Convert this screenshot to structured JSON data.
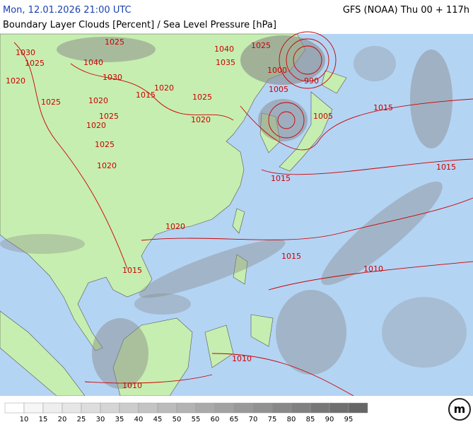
{
  "header": {
    "datetime": "Mon, 12.01.2026 21:00 UTC",
    "model": "GFS (NOAA) Thu 00 + 117h",
    "subtitle": "Boundary Layer Clouds [Percent] / Sea Level Pressure [hPa]"
  },
  "isobar_labels": [
    "1025",
    "1030",
    "1025",
    "1040",
    "1020",
    "1030",
    "1015",
    "1020",
    "1020",
    "1025",
    "1025",
    "1020",
    "1025",
    "1020",
    "1025",
    "1020",
    "1040",
    "1035",
    "1025",
    "1000",
    "990",
    "1005",
    "1005",
    "1015",
    "1015",
    "1015",
    "1020",
    "1015",
    "1010",
    "1015",
    "1010",
    "1010"
  ],
  "legend": {
    "labels": [
      "10",
      "15",
      "20",
      "25",
      "30",
      "35",
      "40",
      "45",
      "50",
      "55",
      "60",
      "65",
      "70",
      "75",
      "80",
      "85",
      "90",
      "95"
    ],
    "colors": [
      "#ffffff",
      "#f6f6f6",
      "#eeeeee",
      "#e6e6e6",
      "#dddddd",
      "#d5d5d5",
      "#cccccc",
      "#c4c4c4",
      "#bbbbbb",
      "#b3b3b3",
      "#aaaaaa",
      "#a2a2a2",
      "#999999",
      "#919191",
      "#888888",
      "#808080",
      "#777777",
      "#6f6f6f",
      "#666666"
    ]
  },
  "logo": "m"
}
